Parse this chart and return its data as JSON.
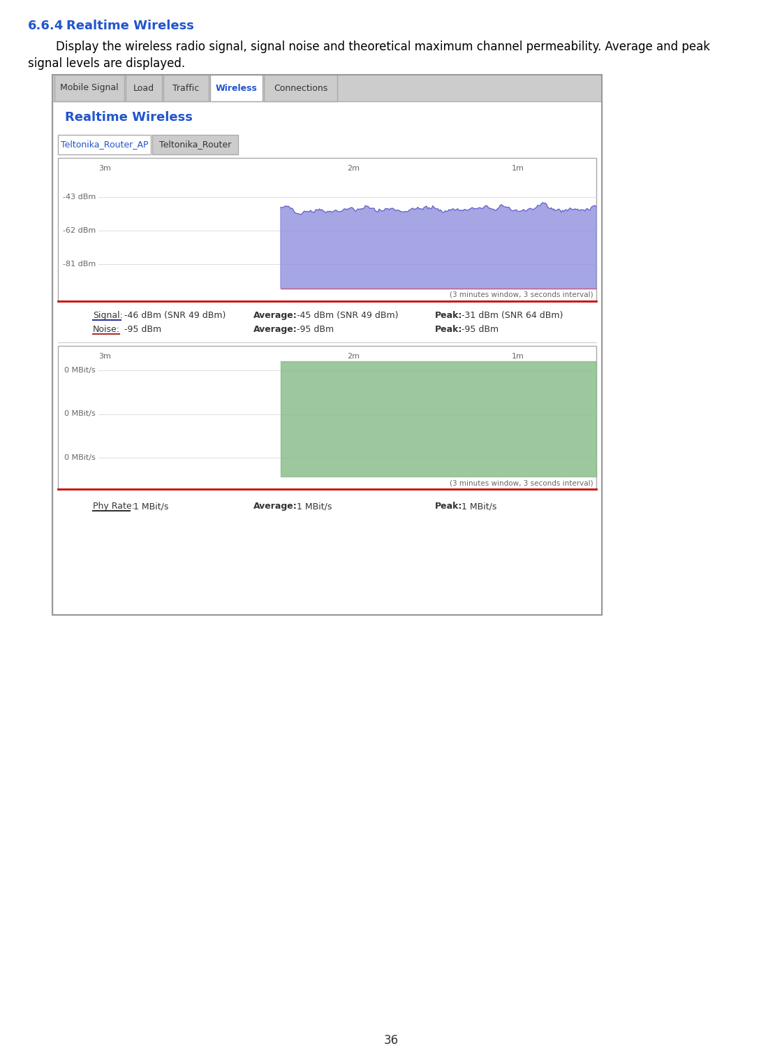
{
  "page_number": "36",
  "section_number": "6.6.4",
  "section_title": "Realtime Wireless",
  "body_text_line1": "Display the wireless radio signal, signal noise and theoretical maximum channel permeability. Average and peak",
  "body_text_line2": "signal levels are displayed.",
  "tab_labels": [
    "Mobile Signal",
    "Load",
    "Traffic",
    "Wireless",
    "Connections"
  ],
  "active_tab": "Wireless",
  "panel_title": "Realtime Wireless",
  "sub_tabs": [
    "Teltonika_Router_AP",
    "Teltonika_Router"
  ],
  "active_sub_tab": "Teltonika_Router_AP",
  "chart1": {
    "x_labels": [
      "3m",
      "2m",
      "1m"
    ],
    "y_labels": [
      "-43 dBm",
      "-62 dBm",
      "-81 dBm"
    ],
    "y_values": [
      -43,
      -62,
      -81
    ],
    "window_text": "(3 minutes window, 3 seconds interval)",
    "signal_color": "#8888dd",
    "noise_color": "#cc6688"
  },
  "chart2": {
    "x_labels": [
      "3m",
      "2m",
      "1m"
    ],
    "y_labels": [
      "0 MBit/s",
      "0 MBit/s",
      "0 MBit/s"
    ],
    "window_text": "(3 minutes window, 3 seconds interval)",
    "fill_color": "#88bb88"
  },
  "bg_color": "#ffffff",
  "border_color": "#999999",
  "title_color": "#2255cc",
  "body_text_color": "#000000",
  "tab_bg": "#cccccc",
  "text_color_dark": "#333333",
  "label_color": "#666666"
}
